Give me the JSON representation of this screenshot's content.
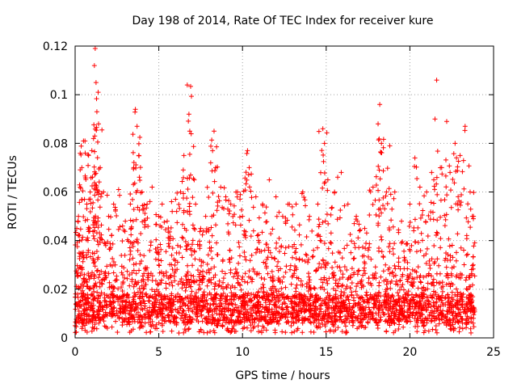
{
  "chart_data": {
    "type": "scatter",
    "title": "Day 198 of 2014, Rate Of TEC Index for receiver kure",
    "xlabel": "GPS time / hours",
    "ylabel": "ROTI / TECUs",
    "xlim": [
      0,
      25
    ],
    "ylim": [
      0,
      0.12
    ],
    "xticks": [
      0,
      5,
      10,
      15,
      20,
      25
    ],
    "yticks": [
      0,
      0.02,
      0.04,
      0.06,
      0.08,
      0.1,
      0.12
    ],
    "xtick_labels": [
      "0",
      "5",
      "10",
      "15",
      "20",
      "25"
    ],
    "ytick_labels": [
      "0",
      "0.02",
      "0.04",
      "0.06",
      "0.08",
      "0.1",
      "0.12"
    ],
    "grid": true,
    "marker": "+",
    "marker_color": "#ff0000",
    "series": [
      {
        "name": "ROTI",
        "points": [
          [
            0.1,
            0.045
          ],
          [
            0.2,
            0.05
          ],
          [
            0.3,
            0.062
          ],
          [
            0.4,
            0.07
          ],
          [
            0.5,
            0.081
          ],
          [
            0.6,
            0.076
          ],
          [
            0.7,
            0.055
          ],
          [
            0.9,
            0.06
          ],
          [
            1.0,
            0.077
          ],
          [
            1.1,
            0.082
          ],
          [
            1.15,
            0.112
          ],
          [
            1.2,
            0.119
          ],
          [
            1.25,
            0.105
          ],
          [
            1.3,
            0.093
          ],
          [
            1.4,
            0.088
          ],
          [
            1.5,
            0.07
          ],
          [
            1.7,
            0.06
          ],
          [
            2.0,
            0.05
          ],
          [
            2.3,
            0.055
          ],
          [
            2.6,
            0.061
          ],
          [
            3.0,
            0.048
          ],
          [
            3.3,
            0.055
          ],
          [
            3.5,
            0.07
          ],
          [
            3.6,
            0.094
          ],
          [
            3.7,
            0.087
          ],
          [
            3.8,
            0.075
          ],
          [
            4.0,
            0.06
          ],
          [
            4.3,
            0.055
          ],
          [
            4.6,
            0.062
          ],
          [
            5.0,
            0.05
          ],
          [
            5.2,
            0.055
          ],
          [
            5.5,
            0.048
          ],
          [
            5.8,
            0.052
          ],
          [
            6.0,
            0.057
          ],
          [
            6.3,
            0.06
          ],
          [
            6.5,
            0.075
          ],
          [
            6.7,
            0.104
          ],
          [
            6.8,
            0.092
          ],
          [
            6.85,
            0.085
          ],
          [
            6.9,
            0.067
          ],
          [
            7.2,
            0.055
          ],
          [
            7.5,
            0.045
          ],
          [
            7.8,
            0.05
          ],
          [
            8.1,
            0.072
          ],
          [
            8.3,
            0.085
          ],
          [
            8.4,
            0.07
          ],
          [
            8.7,
            0.062
          ],
          [
            9.0,
            0.058
          ],
          [
            9.3,
            0.055
          ],
          [
            9.7,
            0.06
          ],
          [
            10.0,
            0.05
          ],
          [
            10.3,
            0.077
          ],
          [
            10.4,
            0.07
          ],
          [
            10.8,
            0.058
          ],
          [
            11.2,
            0.055
          ],
          [
            11.6,
            0.065
          ],
          [
            12.0,
            0.058
          ],
          [
            12.4,
            0.05
          ],
          [
            12.8,
            0.055
          ],
          [
            13.2,
            0.055
          ],
          [
            13.6,
            0.06
          ],
          [
            14.0,
            0.05
          ],
          [
            14.5,
            0.055
          ],
          [
            14.8,
            0.086
          ],
          [
            14.9,
            0.08
          ],
          [
            15.1,
            0.065
          ],
          [
            15.5,
            0.06
          ],
          [
            15.9,
            0.068
          ],
          [
            16.3,
            0.055
          ],
          [
            16.8,
            0.05
          ],
          [
            17.3,
            0.045
          ],
          [
            17.8,
            0.062
          ],
          [
            18.1,
            0.088
          ],
          [
            18.2,
            0.096
          ],
          [
            18.3,
            0.08
          ],
          [
            18.6,
            0.06
          ],
          [
            18.8,
            0.079
          ],
          [
            19.1,
            0.06
          ],
          [
            19.5,
            0.048
          ],
          [
            20.0,
            0.055
          ],
          [
            20.3,
            0.074
          ],
          [
            20.6,
            0.062
          ],
          [
            21.0,
            0.06
          ],
          [
            21.3,
            0.068
          ],
          [
            21.5,
            0.09
          ],
          [
            21.6,
            0.106
          ],
          [
            21.9,
            0.07
          ],
          [
            22.2,
            0.089
          ],
          [
            22.4,
            0.068
          ],
          [
            22.7,
            0.08
          ],
          [
            23.0,
            0.075
          ],
          [
            23.3,
            0.087
          ],
          [
            23.6,
            0.06
          ],
          [
            23.8,
            0.05
          ]
        ],
        "dense_band": {
          "x_range": [
            0,
            23.9
          ],
          "y_range": [
            0.002,
            0.04
          ],
          "typical_y": 0.012
        }
      }
    ]
  }
}
